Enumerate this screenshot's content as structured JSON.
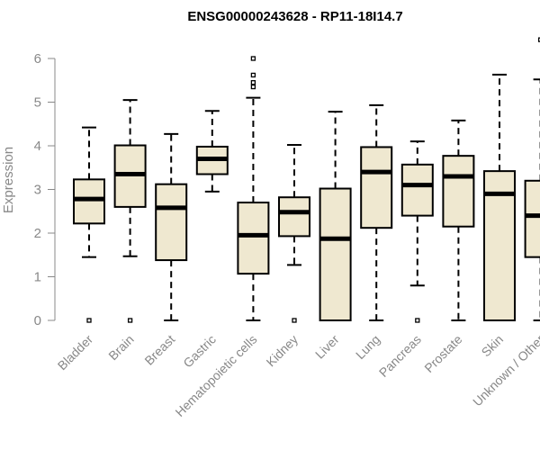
{
  "chart_data": {
    "type": "boxplot",
    "title": "ENSG00000243628 - RP11-18I14.7",
    "ylabel": "Expression",
    "xlabel": "",
    "ylim": [
      0,
      6.5
    ],
    "yticks": [
      0,
      1,
      2,
      3,
      4,
      5,
      6
    ],
    "categories": [
      "Bladder",
      "Brain",
      "Breast",
      "Gastric",
      "Hematopoietic cells",
      "Kidney",
      "Liver",
      "Lung",
      "Pancreas",
      "Prostate",
      "Skin",
      "Unknown / Other"
    ],
    "series": [
      {
        "name": "Bladder",
        "whisker_low": 1.45,
        "q1": 2.22,
        "median": 2.78,
        "q3": 3.23,
        "whisker_high": 4.42,
        "outliers": [
          0
        ]
      },
      {
        "name": "Brain",
        "whisker_low": 1.47,
        "q1": 2.6,
        "median": 3.35,
        "q3": 4.01,
        "whisker_high": 5.05,
        "outliers": [
          0
        ]
      },
      {
        "name": "Breast",
        "whisker_low": 0,
        "q1": 1.38,
        "median": 2.58,
        "q3": 3.12,
        "whisker_high": 4.27,
        "outliers": []
      },
      {
        "name": "Gastric",
        "whisker_low": 2.95,
        "q1": 3.35,
        "median": 3.7,
        "q3": 3.98,
        "whisker_high": 4.8,
        "outliers": []
      },
      {
        "name": "Hematopoietic cells",
        "whisker_low": 0,
        "q1": 1.07,
        "median": 1.95,
        "q3": 2.7,
        "whisker_high": 5.1,
        "outliers": [
          5.35,
          5.45,
          5.62,
          6.0
        ]
      },
      {
        "name": "Kidney",
        "whisker_low": 1.27,
        "q1": 1.93,
        "median": 2.48,
        "q3": 2.82,
        "whisker_high": 4.02,
        "outliers": [
          0
        ]
      },
      {
        "name": "Liver",
        "whisker_low": 0,
        "q1": 0,
        "median": 1.87,
        "q3": 3.02,
        "whisker_high": 4.78,
        "outliers": []
      },
      {
        "name": "Lung",
        "whisker_low": 0,
        "q1": 2.12,
        "median": 3.4,
        "q3": 3.97,
        "whisker_high": 4.93,
        "outliers": []
      },
      {
        "name": "Pancreas",
        "whisker_low": 0.8,
        "q1": 2.4,
        "median": 3.1,
        "q3": 3.57,
        "whisker_high": 4.1,
        "outliers": [
          0
        ]
      },
      {
        "name": "Prostate",
        "whisker_low": 0,
        "q1": 2.15,
        "median": 3.3,
        "q3": 3.77,
        "whisker_high": 4.58,
        "outliers": []
      },
      {
        "name": "Skin",
        "whisker_low": 0,
        "q1": 0,
        "median": 2.9,
        "q3": 3.42,
        "whisker_high": 5.63,
        "outliers": []
      },
      {
        "name": "Unknown / Other",
        "whisker_low": 0,
        "q1": 1.45,
        "median": 2.4,
        "q3": 3.2,
        "whisker_high": 5.52,
        "outliers": [
          6.43
        ]
      }
    ],
    "box_fill": "#efe8d0",
    "box_stroke": "#000000",
    "axis_text_color": "#888888",
    "axis_line_color": "#888888",
    "grid": false,
    "legend": "none"
  }
}
